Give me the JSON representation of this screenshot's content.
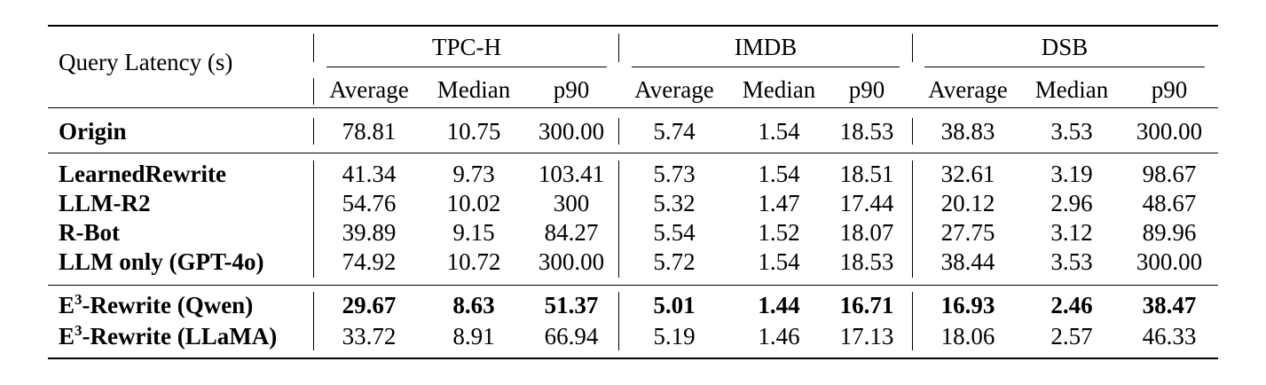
{
  "header": {
    "corner_label": "Query Latency (s)",
    "groups": [
      "TPC-H",
      "IMDB",
      "DSB"
    ],
    "subcolumns": [
      "Average",
      "Median",
      "p90"
    ]
  },
  "rows": [
    {
      "name": "Origin",
      "bold_values": false,
      "values": [
        "78.81",
        "10.75",
        "300.00",
        "5.74",
        "1.54",
        "18.53",
        "38.83",
        "3.53",
        "300.00"
      ]
    },
    {
      "name": "LearnedRewrite",
      "bold_values": false,
      "values": [
        "41.34",
        "9.73",
        "103.41",
        "5.73",
        "1.54",
        "18.51",
        "32.61",
        "3.19",
        "98.67"
      ]
    },
    {
      "name": "LLM-R2",
      "bold_values": false,
      "values": [
        "54.76",
        "10.02",
        "300",
        "5.32",
        "1.47",
        "17.44",
        "20.12",
        "2.96",
        "48.67"
      ]
    },
    {
      "name": "R-Bot",
      "bold_values": false,
      "values": [
        "39.89",
        "9.15",
        "84.27",
        "5.54",
        "1.52",
        "18.07",
        "27.75",
        "3.12",
        "89.96"
      ]
    },
    {
      "name": "LLM only (GPT-4o)",
      "bold_values": false,
      "values": [
        "74.92",
        "10.72",
        "300.00",
        "5.72",
        "1.54",
        "18.53",
        "38.44",
        "3.53",
        "300.00"
      ]
    },
    {
      "name_prefix": "E",
      "name_sup": "3",
      "name_suffix": "-Rewrite (Qwen)",
      "bold_values": true,
      "values": [
        "29.67",
        "8.63",
        "51.37",
        "5.01",
        "1.44",
        "16.71",
        "16.93",
        "2.46",
        "38.47"
      ]
    },
    {
      "name_prefix": "E",
      "name_sup": "3",
      "name_suffix": "-Rewrite (LLaMA)",
      "bold_values": false,
      "values": [
        "33.72",
        "8.91",
        "66.94",
        "5.19",
        "1.46",
        "17.13",
        "18.06",
        "2.57",
        "46.33"
      ]
    }
  ]
}
